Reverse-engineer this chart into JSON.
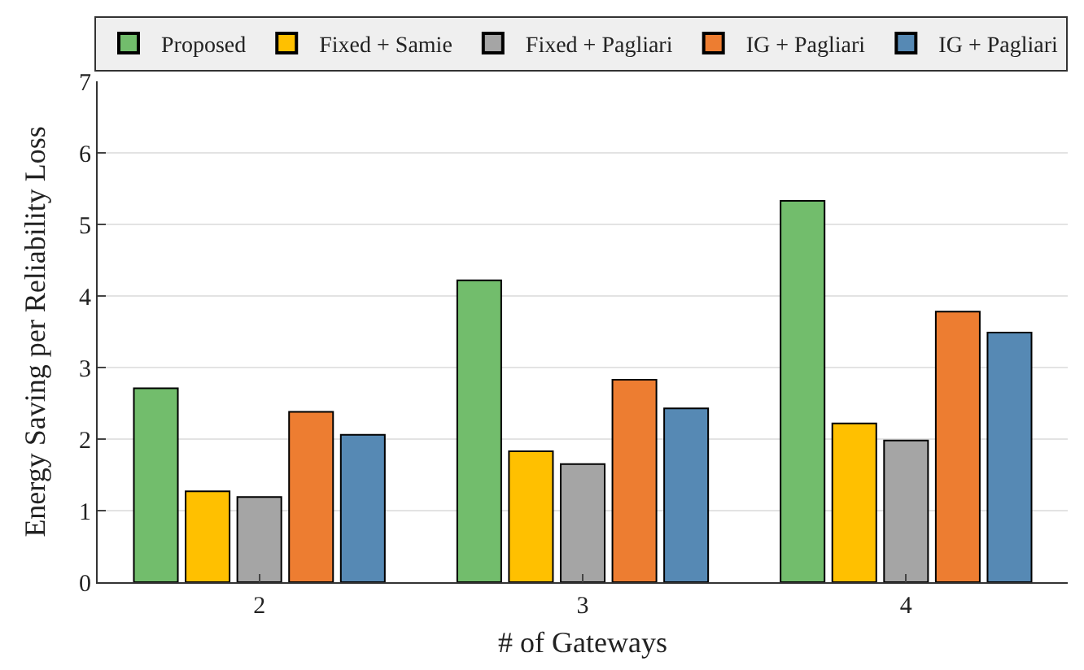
{
  "chart_data": {
    "type": "bar",
    "xlabel": "# of Gateways",
    "ylabel": "Energy Saving per Reliability Loss",
    "categories": [
      "2",
      "3",
      "4"
    ],
    "series": [
      {
        "name": "Proposed",
        "color": "#72bd6c",
        "values": [
          2.71,
          4.22,
          5.33
        ]
      },
      {
        "name": "Fixed + Samie",
        "color": "#ffc000",
        "values": [
          1.27,
          1.83,
          2.22
        ]
      },
      {
        "name": "Fixed + Pagliari",
        "color": "#a5a5a5",
        "values": [
          1.19,
          1.65,
          1.98
        ]
      },
      {
        "name": "IG + Pagliari",
        "color": "#ed7d31",
        "values": [
          2.38,
          2.83,
          3.78
        ]
      },
      {
        "name": "IG + Pagliari",
        "color": "#5689b4",
        "values": [
          2.06,
          2.43,
          3.49
        ]
      }
    ],
    "ylim": [
      0,
      7
    ],
    "yticks": [
      0,
      1,
      2,
      3,
      4,
      5,
      6,
      7
    ],
    "grid": "y",
    "legend": "top"
  }
}
